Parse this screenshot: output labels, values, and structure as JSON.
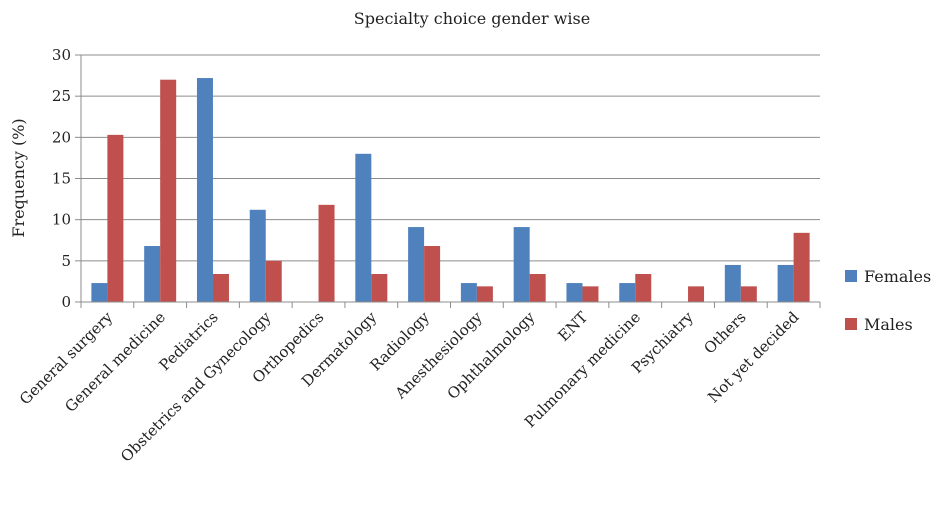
{
  "chart_data": {
    "type": "bar",
    "title": "Specialty choice gender wise",
    "xlabel": "",
    "ylabel": "Frequency (%)",
    "ylim": [
      0,
      30
    ],
    "yticks": [
      0,
      5,
      10,
      15,
      20,
      25,
      30
    ],
    "grid": true,
    "legend_position": "right",
    "categories": [
      "General surgery",
      "General medicine",
      "Pediatrics",
      "Obstetrics and Gynecology",
      "Orthopedics",
      "Dermatology",
      "Radiology",
      "Anesthesiology",
      "Ophthalmology",
      "ENT",
      "Pulmonary medicine",
      "Psychiatry",
      "Others",
      "Not yet decided"
    ],
    "series": [
      {
        "name": "Females",
        "color": "#4f81bd",
        "values": [
          2.3,
          6.8,
          27.2,
          11.2,
          0,
          18.0,
          9.1,
          2.3,
          9.1,
          2.3,
          2.3,
          0,
          4.5,
          4.5
        ]
      },
      {
        "name": "Males",
        "color": "#c0504d",
        "values": [
          20.3,
          27.0,
          3.4,
          5.0,
          11.8,
          3.4,
          6.8,
          1.9,
          3.4,
          1.9,
          3.4,
          1.9,
          1.9,
          8.4
        ]
      }
    ]
  }
}
